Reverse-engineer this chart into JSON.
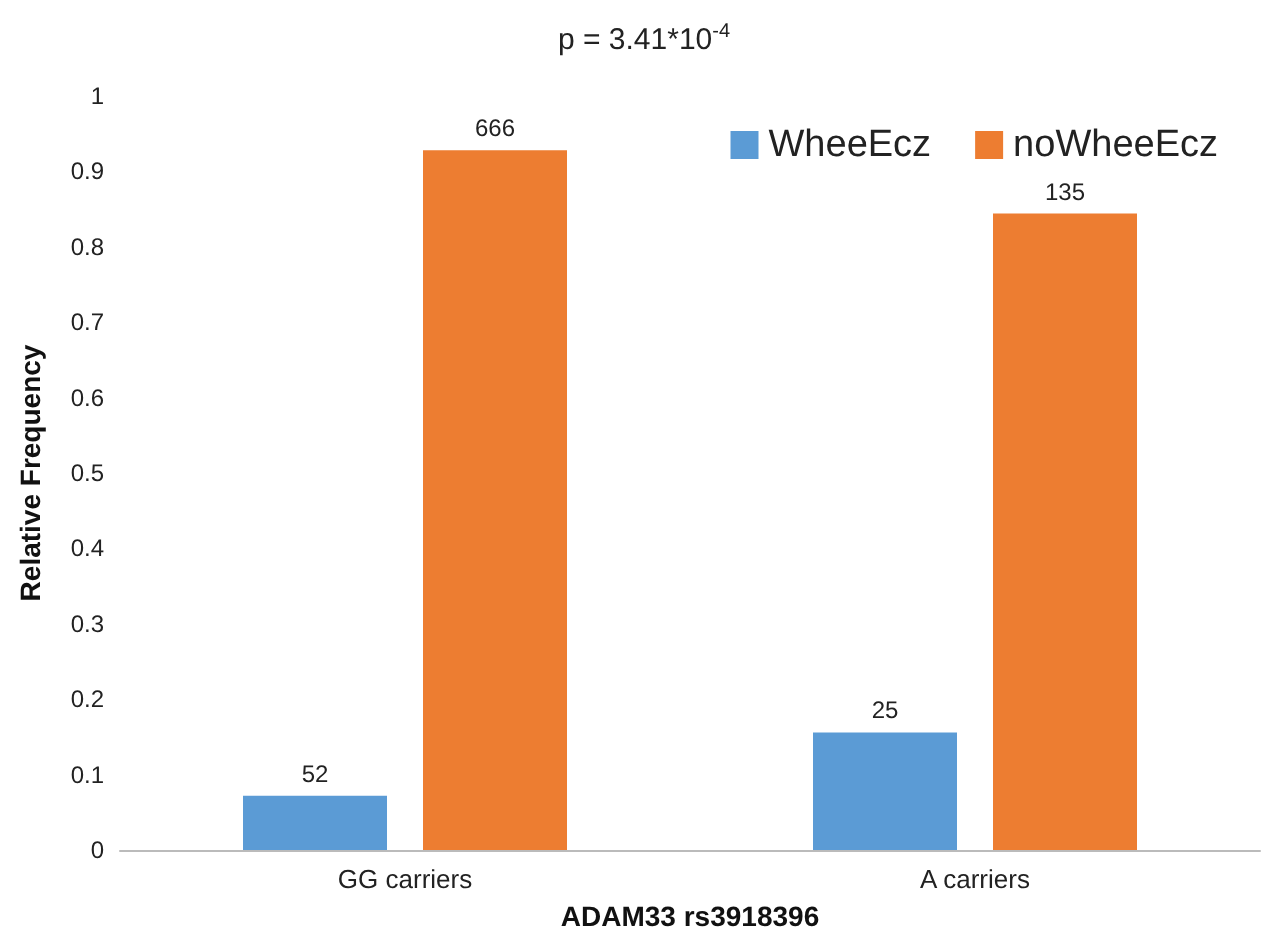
{
  "chart_data": {
    "type": "bar",
    "title": "p = 3.41*10$^{-4}$",
    "xlabel": "ADAM33 rs3918396",
    "ylabel": "Relative Frequency",
    "categories": [
      "GG carriers",
      "A carriers"
    ],
    "series": [
      {
        "name": "WheeEcz",
        "color": "#5b9bd5",
        "values": [
          0.072,
          0.156
        ]
      },
      {
        "name": "noWheeEcz",
        "color": "#ed7d31",
        "values": [
          0.928,
          0.844
        ]
      }
    ],
    "annotations": [
      "52",
      "666",
      "25",
      "135"
    ],
    "ylim": [
      0,
      1
    ],
    "yticks": [
      0,
      0.1,
      0.2,
      0.3,
      0.4,
      0.5,
      0.6,
      0.7,
      0.8,
      0.9,
      1
    ],
    "grid": false,
    "legend": "top right"
  }
}
